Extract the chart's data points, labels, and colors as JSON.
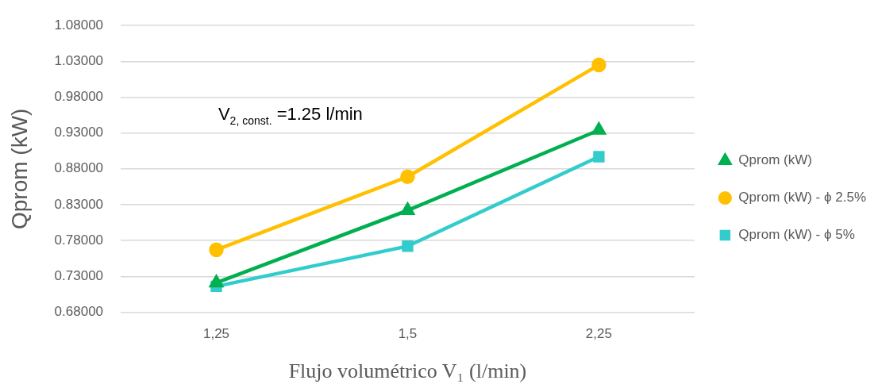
{
  "chart_data": {
    "type": "line",
    "xlabel": "Flujo volumétrico V₁ (l/min)",
    "ylabel": "Qprom (kW)",
    "categories": [
      "1,25",
      "1,5",
      "2,25"
    ],
    "series": [
      {
        "name": "Qprom (kW)",
        "color": "#00b050",
        "marker": "triangle",
        "values": [
          0.721,
          0.822,
          0.934
        ]
      },
      {
        "name": "Qprom (kW) - ϕ 2.5%",
        "color": "#ffc000",
        "marker": "circle",
        "values": [
          0.767,
          0.869,
          1.025
        ]
      },
      {
        "name": "Qprom (kW) - ϕ 5%",
        "color": "#33cccc",
        "marker": "square",
        "values": [
          0.716,
          0.772,
          0.897
        ]
      }
    ],
    "ylim": [
      0.68,
      1.08
    ],
    "yticks": [
      {
        "value": 0.68,
        "label": "0.68000"
      },
      {
        "value": 0.73,
        "label": "0.73000"
      },
      {
        "value": 0.78,
        "label": "0.78000"
      },
      {
        "value": 0.83,
        "label": "0.83000"
      },
      {
        "value": 0.88,
        "label": "0.88000"
      },
      {
        "value": 0.93,
        "label": "0.93000"
      },
      {
        "value": 0.98,
        "label": "0.98000"
      },
      {
        "value": 1.03,
        "label": "1.03000"
      },
      {
        "value": 1.08,
        "label": "1.08000"
      }
    ],
    "annotations": [
      "V$_{2, const.}$ =1.25 l/min"
    ],
    "grid": "y",
    "legend": "right",
    "line_style": "solid"
  }
}
